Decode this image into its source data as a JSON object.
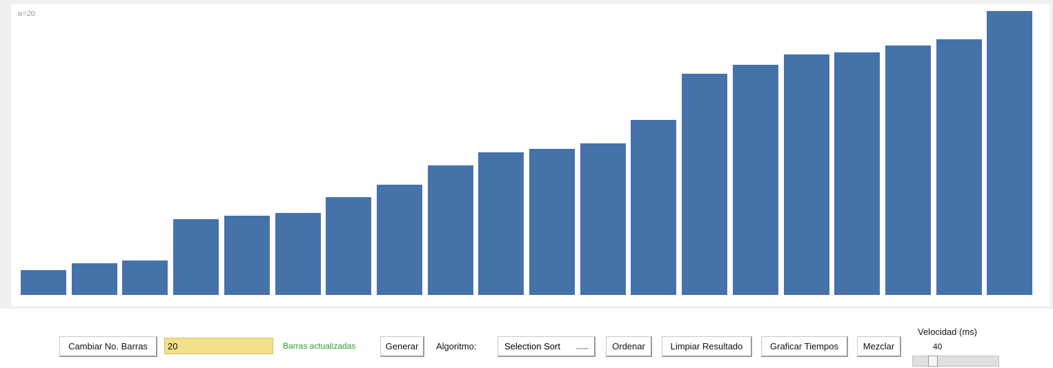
{
  "canvas": {
    "n_label": "n=20",
    "bar_color": "#4672aa",
    "bar_values": [
      36,
      46,
      50,
      110,
      115,
      119,
      142,
      160,
      188,
      207,
      212,
      220,
      254,
      321,
      334,
      349,
      352,
      362,
      371,
      412
    ],
    "max_value": 412
  },
  "controls": {
    "change_bars_label": "Cambiar No. Barras",
    "bars_input_value": "20",
    "status_text": "Barras actualizadas",
    "generate_label": "Generar",
    "algorithm_label": "Algoritmo:",
    "algorithm_selected": "Selection Sort",
    "sort_label": "Ordenar",
    "clear_label": "Limpiar Resultado",
    "plot_times_label": "Graficar Tiempos",
    "shuffle_label": "Mezclar",
    "speed_label": "Velocidad (ms)",
    "speed_value": "40"
  }
}
